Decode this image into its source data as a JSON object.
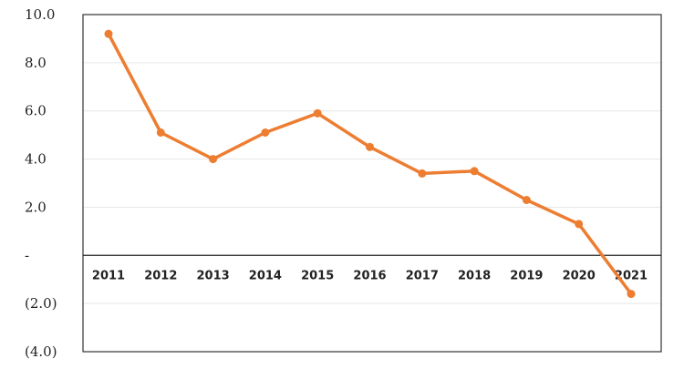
{
  "chart_data": {
    "type": "line",
    "title": "",
    "xlabel": "",
    "ylabel": "",
    "categories": [
      "2011",
      "2012",
      "2013",
      "2014",
      "2015",
      "2016",
      "2017",
      "2018",
      "2019",
      "2020",
      "2021"
    ],
    "series": [
      {
        "values": [
          9.2,
          5.1,
          4.0,
          5.1,
          5.9,
          4.5,
          3.4,
          3.5,
          2.3,
          1.3,
          -1.6
        ],
        "color": "#ED7D31"
      }
    ],
    "ylim": [
      -4,
      10
    ],
    "yticks": [
      {
        "value": 10,
        "label": "10.0"
      },
      {
        "value": 8,
        "label": "8.0"
      },
      {
        "value": 6,
        "label": "6.0"
      },
      {
        "value": 4,
        "label": "4.0"
      },
      {
        "value": 2,
        "label": "2.0"
      },
      {
        "value": 0,
        "label": "-"
      },
      {
        "value": -2,
        "label": "(2.0)"
      },
      {
        "value": -4,
        "label": "(4.0)"
      }
    ],
    "grid": true,
    "legend": "none"
  }
}
